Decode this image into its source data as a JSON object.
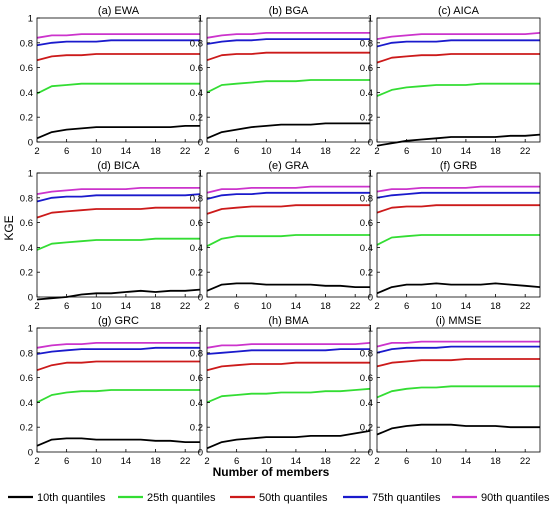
{
  "chart_data": {
    "type": "line",
    "ylabel": "KGE",
    "xlabel": "Number of members",
    "xlim": [
      2,
      24
    ],
    "ylim": [
      0,
      1
    ],
    "xticks": [
      "2",
      "6",
      "10",
      "14",
      "18",
      "22"
    ],
    "yticks": [
      "0",
      "0.2",
      "0.4",
      "0.6",
      "0.8",
      "1"
    ],
    "grid": false,
    "legend_position": "bottom",
    "legend": [
      {
        "name": "10th quantiles",
        "color": "#000000"
      },
      {
        "name": "25th quantiles",
        "color": "#33dd33"
      },
      {
        "name": "50th quantiles",
        "color": "#cc1a1a"
      },
      {
        "name": "75th quantiles",
        "color": "#1a1acc"
      },
      {
        "name": "90th quantiles",
        "color": "#cc33cc"
      }
    ],
    "x": [
      2,
      4,
      6,
      8,
      10,
      12,
      14,
      16,
      18,
      20,
      22,
      24
    ],
    "panels": [
      {
        "title": "(a) EWA",
        "series": [
          {
            "name": "10th quantiles",
            "values": [
              0.03,
              0.08,
              0.1,
              0.11,
              0.12,
              0.12,
              0.12,
              0.12,
              0.12,
              0.12,
              0.13,
              0.13
            ]
          },
          {
            "name": "25th quantiles",
            "values": [
              0.39,
              0.45,
              0.46,
              0.47,
              0.47,
              0.47,
              0.47,
              0.47,
              0.47,
              0.47,
              0.47,
              0.47
            ]
          },
          {
            "name": "50th quantiles",
            "values": [
              0.66,
              0.69,
              0.7,
              0.7,
              0.71,
              0.71,
              0.71,
              0.71,
              0.71,
              0.71,
              0.71,
              0.71
            ]
          },
          {
            "name": "75th quantiles",
            "values": [
              0.78,
              0.8,
              0.81,
              0.81,
              0.81,
              0.82,
              0.82,
              0.82,
              0.82,
              0.82,
              0.82,
              0.82
            ]
          },
          {
            "name": "90th quantiles",
            "values": [
              0.84,
              0.86,
              0.86,
              0.87,
              0.87,
              0.87,
              0.87,
              0.87,
              0.87,
              0.87,
              0.87,
              0.87
            ]
          }
        ]
      },
      {
        "title": "(b) BGA",
        "series": [
          {
            "name": "10th quantiles",
            "values": [
              0.03,
              0.08,
              0.1,
              0.12,
              0.13,
              0.14,
              0.14,
              0.14,
              0.15,
              0.15,
              0.15,
              0.15
            ]
          },
          {
            "name": "25th quantiles",
            "values": [
              0.4,
              0.46,
              0.47,
              0.48,
              0.49,
              0.49,
              0.49,
              0.5,
              0.5,
              0.5,
              0.5,
              0.5
            ]
          },
          {
            "name": "50th quantiles",
            "values": [
              0.66,
              0.7,
              0.71,
              0.71,
              0.72,
              0.72,
              0.72,
              0.72,
              0.72,
              0.72,
              0.72,
              0.72
            ]
          },
          {
            "name": "75th quantiles",
            "values": [
              0.79,
              0.81,
              0.82,
              0.82,
              0.83,
              0.83,
              0.83,
              0.83,
              0.83,
              0.83,
              0.83,
              0.83
            ]
          },
          {
            "name": "90th quantiles",
            "values": [
              0.84,
              0.86,
              0.87,
              0.87,
              0.88,
              0.88,
              0.88,
              0.88,
              0.88,
              0.88,
              0.88,
              0.88
            ]
          }
        ]
      },
      {
        "title": "(c) AICA",
        "series": [
          {
            "name": "10th quantiles",
            "values": [
              -0.03,
              -0.01,
              0.01,
              0.02,
              0.03,
              0.04,
              0.04,
              0.04,
              0.04,
              0.05,
              0.05,
              0.06
            ]
          },
          {
            "name": "25th quantiles",
            "values": [
              0.37,
              0.42,
              0.44,
              0.45,
              0.46,
              0.46,
              0.46,
              0.47,
              0.47,
              0.47,
              0.47,
              0.47
            ]
          },
          {
            "name": "50th quantiles",
            "values": [
              0.64,
              0.68,
              0.69,
              0.7,
              0.7,
              0.71,
              0.71,
              0.71,
              0.71,
              0.71,
              0.71,
              0.71
            ]
          },
          {
            "name": "75th quantiles",
            "values": [
              0.77,
              0.8,
              0.81,
              0.81,
              0.81,
              0.82,
              0.82,
              0.82,
              0.82,
              0.82,
              0.82,
              0.82
            ]
          },
          {
            "name": "90th quantiles",
            "values": [
              0.83,
              0.85,
              0.86,
              0.87,
              0.87,
              0.87,
              0.87,
              0.87,
              0.87,
              0.87,
              0.87,
              0.88
            ]
          }
        ]
      },
      {
        "title": "(d) BICA",
        "series": [
          {
            "name": "10th quantiles",
            "values": [
              -0.02,
              -0.01,
              0.0,
              0.02,
              0.03,
              0.03,
              0.04,
              0.05,
              0.04,
              0.05,
              0.05,
              0.06
            ]
          },
          {
            "name": "25th quantiles",
            "values": [
              0.38,
              0.43,
              0.44,
              0.45,
              0.46,
              0.46,
              0.46,
              0.46,
              0.47,
              0.47,
              0.47,
              0.47
            ]
          },
          {
            "name": "50th quantiles",
            "values": [
              0.64,
              0.68,
              0.69,
              0.7,
              0.71,
              0.71,
              0.71,
              0.71,
              0.72,
              0.72,
              0.72,
              0.72
            ]
          },
          {
            "name": "75th quantiles",
            "values": [
              0.77,
              0.8,
              0.81,
              0.81,
              0.82,
              0.82,
              0.82,
              0.82,
              0.82,
              0.82,
              0.82,
              0.83
            ]
          },
          {
            "name": "90th quantiles",
            "values": [
              0.83,
              0.85,
              0.86,
              0.87,
              0.87,
              0.87,
              0.87,
              0.88,
              0.88,
              0.88,
              0.88,
              0.88
            ]
          }
        ]
      },
      {
        "title": "(e) GRA",
        "series": [
          {
            "name": "10th quantiles",
            "values": [
              0.05,
              0.1,
              0.11,
              0.11,
              0.1,
              0.1,
              0.1,
              0.1,
              0.09,
              0.09,
              0.08,
              0.08
            ]
          },
          {
            "name": "25th quantiles",
            "values": [
              0.41,
              0.47,
              0.49,
              0.49,
              0.49,
              0.49,
              0.5,
              0.5,
              0.5,
              0.5,
              0.5,
              0.5
            ]
          },
          {
            "name": "50th quantiles",
            "values": [
              0.67,
              0.71,
              0.72,
              0.73,
              0.73,
              0.73,
              0.74,
              0.74,
              0.74,
              0.74,
              0.74,
              0.74
            ]
          },
          {
            "name": "75th quantiles",
            "values": [
              0.79,
              0.82,
              0.83,
              0.83,
              0.84,
              0.84,
              0.84,
              0.84,
              0.84,
              0.84,
              0.84,
              0.84
            ]
          },
          {
            "name": "90th quantiles",
            "values": [
              0.84,
              0.87,
              0.87,
              0.88,
              0.88,
              0.88,
              0.88,
              0.89,
              0.89,
              0.89,
              0.89,
              0.89
            ]
          }
        ]
      },
      {
        "title": "(f) GRB",
        "series": [
          {
            "name": "10th quantiles",
            "values": [
              0.03,
              0.08,
              0.1,
              0.1,
              0.11,
              0.1,
              0.1,
              0.1,
              0.11,
              0.1,
              0.09,
              0.08
            ]
          },
          {
            "name": "25th quantiles",
            "values": [
              0.42,
              0.48,
              0.49,
              0.5,
              0.5,
              0.5,
              0.5,
              0.5,
              0.5,
              0.5,
              0.5,
              0.5
            ]
          },
          {
            "name": "50th quantiles",
            "values": [
              0.68,
              0.72,
              0.73,
              0.73,
              0.74,
              0.74,
              0.74,
              0.74,
              0.74,
              0.74,
              0.74,
              0.74
            ]
          },
          {
            "name": "75th quantiles",
            "values": [
              0.8,
              0.82,
              0.83,
              0.84,
              0.84,
              0.84,
              0.84,
              0.84,
              0.84,
              0.84,
              0.84,
              0.84
            ]
          },
          {
            "name": "90th quantiles",
            "values": [
              0.85,
              0.87,
              0.87,
              0.88,
              0.88,
              0.88,
              0.88,
              0.89,
              0.89,
              0.89,
              0.89,
              0.89
            ]
          }
        ]
      },
      {
        "title": "(g) GRC",
        "series": [
          {
            "name": "10th quantiles",
            "values": [
              0.05,
              0.1,
              0.11,
              0.11,
              0.1,
              0.1,
              0.1,
              0.1,
              0.09,
              0.09,
              0.08,
              0.08
            ]
          },
          {
            "name": "25th quantiles",
            "values": [
              0.4,
              0.46,
              0.48,
              0.49,
              0.49,
              0.5,
              0.5,
              0.5,
              0.5,
              0.5,
              0.5,
              0.5
            ]
          },
          {
            "name": "50th quantiles",
            "values": [
              0.66,
              0.7,
              0.72,
              0.72,
              0.73,
              0.73,
              0.73,
              0.73,
              0.73,
              0.73,
              0.73,
              0.73
            ]
          },
          {
            "name": "75th quantiles",
            "values": [
              0.79,
              0.81,
              0.82,
              0.83,
              0.83,
              0.83,
              0.83,
              0.83,
              0.84,
              0.84,
              0.84,
              0.84
            ]
          },
          {
            "name": "90th quantiles",
            "values": [
              0.84,
              0.86,
              0.87,
              0.87,
              0.88,
              0.88,
              0.88,
              0.88,
              0.88,
              0.88,
              0.88,
              0.88
            ]
          }
        ]
      },
      {
        "title": "(h) BMA",
        "series": [
          {
            "name": "10th quantiles",
            "values": [
              0.03,
              0.08,
              0.1,
              0.11,
              0.12,
              0.12,
              0.12,
              0.13,
              0.13,
              0.13,
              0.15,
              0.17
            ]
          },
          {
            "name": "25th quantiles",
            "values": [
              0.4,
              0.45,
              0.46,
              0.47,
              0.47,
              0.48,
              0.48,
              0.48,
              0.49,
              0.49,
              0.5,
              0.51
            ]
          },
          {
            "name": "50th quantiles",
            "values": [
              0.66,
              0.69,
              0.7,
              0.71,
              0.71,
              0.71,
              0.72,
              0.72,
              0.72,
              0.72,
              0.72,
              0.72
            ]
          },
          {
            "name": "75th quantiles",
            "values": [
              0.79,
              0.8,
              0.81,
              0.82,
              0.82,
              0.82,
              0.82,
              0.82,
              0.82,
              0.83,
              0.83,
              0.83
            ]
          },
          {
            "name": "90th quantiles",
            "values": [
              0.84,
              0.86,
              0.86,
              0.87,
              0.87,
              0.87,
              0.87,
              0.87,
              0.87,
              0.87,
              0.87,
              0.88
            ]
          }
        ]
      },
      {
        "title": "(i) MMSE",
        "series": [
          {
            "name": "10th quantiles",
            "values": [
              0.14,
              0.19,
              0.21,
              0.22,
              0.22,
              0.22,
              0.21,
              0.21,
              0.21,
              0.2,
              0.2,
              0.2
            ]
          },
          {
            "name": "25th quantiles",
            "values": [
              0.44,
              0.49,
              0.51,
              0.52,
              0.52,
              0.53,
              0.53,
              0.53,
              0.53,
              0.53,
              0.53,
              0.53
            ]
          },
          {
            "name": "50th quantiles",
            "values": [
              0.69,
              0.72,
              0.73,
              0.74,
              0.74,
              0.74,
              0.75,
              0.75,
              0.75,
              0.75,
              0.75,
              0.75
            ]
          },
          {
            "name": "75th quantiles",
            "values": [
              0.8,
              0.83,
              0.84,
              0.84,
              0.84,
              0.85,
              0.85,
              0.85,
              0.85,
              0.85,
              0.85,
              0.85
            ]
          },
          {
            "name": "90th quantiles",
            "values": [
              0.85,
              0.88,
              0.88,
              0.89,
              0.89,
              0.89,
              0.89,
              0.89,
              0.89,
              0.89,
              0.89,
              0.89
            ]
          }
        ]
      }
    ]
  }
}
